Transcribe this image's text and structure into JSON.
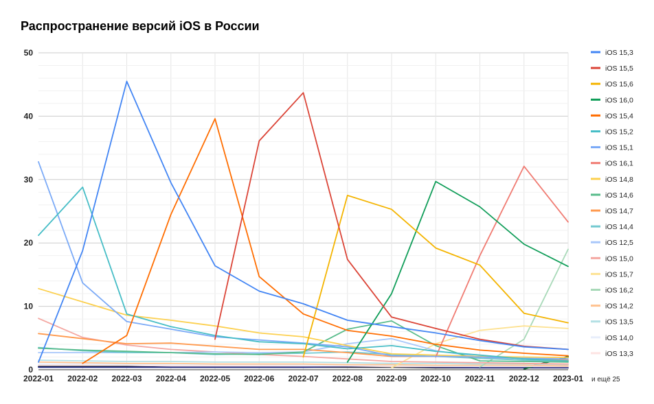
{
  "title": "Распространение версий iOS в России",
  "chart_data": {
    "type": "line",
    "title": "Распространение версий iOS в России",
    "xlabel": "",
    "ylabel": "",
    "ylim": [
      0,
      50
    ],
    "yticks": [
      0,
      10,
      20,
      30,
      40,
      50
    ],
    "grid": true,
    "legend_position": "right",
    "x": [
      "2022-01",
      "2022-02",
      "2022-03",
      "2022-04",
      "2022-05",
      "2022-06",
      "2022-07",
      "2022-08",
      "2022-09",
      "2022-10",
      "2022-11",
      "2022-12",
      "2023-01"
    ],
    "series": [
      {
        "name": "iOS 15,3",
        "color": "#4285f4",
        "values": [
          1.2,
          18.8,
          45.5,
          29.5,
          16.4,
          12.4,
          10.4,
          7.8,
          6.8,
          5.8,
          4.6,
          3.6,
          3.2
        ]
      },
      {
        "name": "iOS 15,5",
        "color": "#db4437",
        "values": [
          null,
          null,
          null,
          null,
          4.8,
          36.1,
          43.7,
          17.4,
          8.3,
          6.5,
          4.8,
          3.7,
          3.2
        ]
      },
      {
        "name": "iOS 15,6",
        "color": "#f4b400",
        "values": [
          null,
          null,
          null,
          null,
          null,
          null,
          2.0,
          27.5,
          25.3,
          19.2,
          16.5,
          8.9,
          7.4
        ]
      },
      {
        "name": "iOS 16,0",
        "color": "#0f9d58",
        "values": [
          null,
          null,
          null,
          null,
          null,
          null,
          null,
          1.2,
          12.0,
          29.7,
          25.7,
          19.8,
          16.3
        ]
      },
      {
        "name": "iOS 15,4",
        "color": "#ff6d00",
        "values": [
          null,
          1.0,
          5.4,
          24.5,
          39.6,
          14.7,
          8.8,
          6.2,
          5.3,
          4.0,
          3.1,
          2.6,
          2.2
        ]
      },
      {
        "name": "iOS 15,2",
        "color": "#46bdc6",
        "values": [
          21.2,
          28.8,
          8.8,
          6.8,
          5.4,
          4.4,
          4.1,
          3.3,
          3.8,
          2.9,
          2.3,
          1.7,
          1.4
        ]
      },
      {
        "name": "iOS 15,1",
        "color": "#7baaf7",
        "values": [
          32.8,
          13.7,
          7.6,
          6.4,
          5.2,
          4.7,
          4.2,
          3.6,
          2.2,
          2.1,
          2.0,
          1.8,
          1.7
        ]
      },
      {
        "name": "iOS 16,1",
        "color": "#f07b72",
        "values": [
          null,
          null,
          null,
          null,
          null,
          null,
          null,
          null,
          null,
          2.0,
          18.0,
          32.1,
          23.3
        ]
      },
      {
        "name": "iOS 14,8",
        "color": "#fcd04f",
        "values": [
          12.8,
          10.7,
          8.6,
          7.8,
          6.9,
          5.8,
          5.2,
          3.8,
          2.5,
          2.3,
          2.1,
          2.0,
          1.9
        ]
      },
      {
        "name": "iOS 14,6",
        "color": "#57bb8a",
        "values": [
          3.4,
          3.1,
          2.9,
          2.7,
          2.5,
          2.4,
          2.8,
          6.4,
          7.7,
          3.8,
          1.4,
          1.3,
          1.2
        ]
      },
      {
        "name": "iOS 14,7",
        "color": "#ff994d",
        "values": [
          5.7,
          4.9,
          4.1,
          4.2,
          3.7,
          3.2,
          3.2,
          2.7,
          2.1,
          2.1,
          2.0,
          1.8,
          1.5
        ]
      },
      {
        "name": "iOS 14,4",
        "color": "#71c8cf",
        "values": [
          3.5,
          3.0,
          2.7,
          2.7,
          2.4,
          2.5,
          2.6,
          2.8,
          2.4,
          2.1,
          1.8,
          1.5,
          1.4
        ]
      },
      {
        "name": "iOS 12,5",
        "color": "#a8c7fa",
        "values": [
          2.7,
          2.7,
          2.7,
          2.7,
          2.8,
          2.7,
          2.8,
          4.1,
          4.9,
          3.0,
          2.0,
          1.5,
          1.2
        ]
      },
      {
        "name": "iOS 15,0",
        "color": "#f4a6a0",
        "values": [
          8.1,
          5.1,
          3.9,
          3.2,
          2.8,
          2.4,
          2.1,
          1.7,
          1.3,
          1.2,
          1.1,
          1.0,
          0.9
        ]
      },
      {
        "name": "iOS 15,7",
        "color": "#fde293",
        "values": [
          null,
          null,
          null,
          null,
          null,
          null,
          null,
          null,
          0.3,
          4.1,
          6.2,
          6.9,
          6.5
        ]
      },
      {
        "name": "iOS 16,2",
        "color": "#a8d9b8",
        "values": [
          null,
          null,
          null,
          null,
          null,
          null,
          null,
          null,
          null,
          null,
          0.4,
          4.8,
          19.0
        ]
      },
      {
        "name": "iOS 14,2",
        "color": "#ffc28f",
        "values": [
          1.2,
          1.1,
          1.0,
          1.0,
          0.9,
          0.9,
          0.9,
          0.8,
          0.8,
          0.7,
          0.7,
          0.7,
          0.6
        ]
      },
      {
        "name": "iOS 13,5",
        "color": "#b3e0e4",
        "values": [
          1.5,
          1.4,
          1.3,
          1.3,
          1.2,
          1.2,
          1.2,
          1.1,
          1.0,
          1.0,
          0.9,
          0.9,
          0.8
        ]
      },
      {
        "name": "iOS 14,0",
        "color": "#e8eefb",
        "values": [
          0.9,
          0.9,
          0.8,
          0.8,
          0.8,
          0.8,
          0.7,
          0.7,
          0.7,
          0.6,
          0.6,
          0.6,
          0.6
        ]
      },
      {
        "name": "iOS 13,3",
        "color": "#fde4e2",
        "values": [
          0.7,
          0.7,
          0.7,
          0.6,
          0.6,
          0.6,
          0.6,
          0.6,
          0.5,
          0.5,
          0.5,
          0.5,
          0.5
        ]
      }
    ],
    "more_label": "и ещё 25",
    "hidden_series": [
      {
        "color": "#202124",
        "values": [
          0.5,
          0.5,
          0.5,
          0.4,
          0.4,
          0.4,
          0.4,
          0.4,
          0.4,
          0.3,
          0.3,
          0.3,
          2.0
        ]
      },
      {
        "color": "#1a237e",
        "values": [
          0.4,
          0.4,
          0.4,
          0.4,
          0.4,
          0.4,
          0.4,
          0.5,
          0.5,
          0.4,
          0.3,
          0.3,
          0.3
        ]
      },
      {
        "color": "#0b6e3a",
        "values": [
          null,
          null,
          null,
          null,
          null,
          null,
          null,
          null,
          null,
          null,
          null,
          0.1,
          2.1
        ]
      }
    ]
  }
}
